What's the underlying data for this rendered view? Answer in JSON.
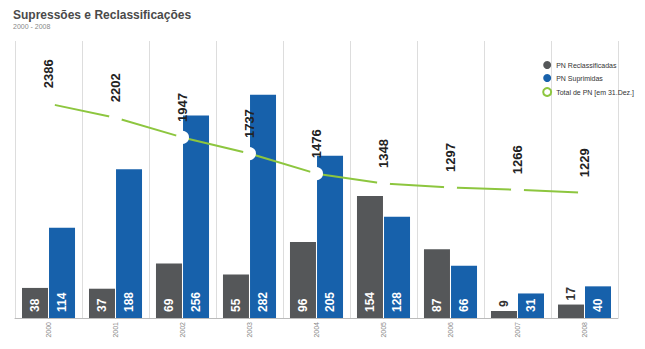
{
  "chart_data": {
    "type": "bar",
    "title": "Supressões e Reclassificações",
    "subtitle": "2000 - 2008",
    "categories": [
      "2000",
      "2001",
      "2002",
      "2003",
      "2004",
      "2005",
      "2006",
      "2007",
      "2008"
    ],
    "series": [
      {
        "name": "PN Reclassificadas",
        "type": "bar",
        "color": "#555759",
        "values": [
          38,
          37,
          69,
          55,
          96,
          154,
          87,
          9,
          17
        ]
      },
      {
        "name": "PN Suprimidas",
        "type": "bar",
        "color": "#1761ab",
        "values": [
          114,
          188,
          256,
          282,
          205,
          128,
          66,
          31,
          40
        ]
      },
      {
        "name": "Total de PN [em 31.Dez.]",
        "type": "line",
        "axis": "y2",
        "color": "#8dc63f",
        "marker": "circle",
        "values": [
          2386,
          2202,
          1947,
          1737,
          1476,
          1348,
          1297,
          1266,
          1229
        ]
      }
    ],
    "ylim": [
      0,
      350
    ],
    "yticks": [
      0,
      50,
      100,
      150,
      200,
      250,
      300,
      350
    ],
    "y2lim": [
      -400,
      3200
    ],
    "y2ticks": [
      -400,
      0,
      400,
      800,
      1200,
      1600,
      2000,
      2400,
      2800,
      3200
    ],
    "grid": true,
    "legend": "top-right",
    "data_labels": true,
    "tick_labels": "x"
  }
}
